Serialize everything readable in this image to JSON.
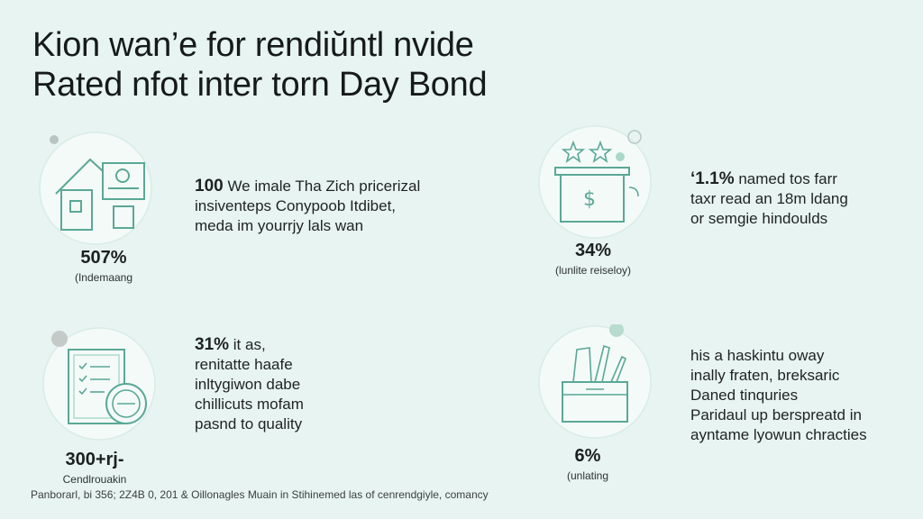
{
  "title": {
    "line1": "Kion wan’e for rendiŭntl nvide",
    "line2": "Rated nfot inter torn Day Bond"
  },
  "blocks": [
    {
      "stat_value": "507%",
      "stat_label": "(Indemaang",
      "lines": [
        "We imale Tha Zich pricerizal",
        "insiventeps Conypoob Itdibet,",
        "meda im yourrjy lals wan"
      ],
      "lead": "100",
      "icon": "house-document-icon"
    },
    {
      "stat_value": "34%",
      "stat_label": "(lunlite reiseloy)",
      "lines": [
        "named tos farr",
        "taxr read an 18m ldang",
        "or semgie hindoulds"
      ],
      "lead": "‘1.1%",
      "icon": "dollar-box-stars-icon"
    },
    {
      "stat_value": "300+rj-",
      "stat_label": "Cendlrouakin",
      "lines": [
        "it as,",
        "renitatte haafe",
        "inltygiwon dabe",
        "chillicuts mofam",
        "pasnd to quality"
      ],
      "lead": "31%",
      "icon": "checklist-card-icon"
    },
    {
      "stat_value": "6%",
      "stat_label": "(unlating",
      "lines": [
        "his a haskintu oway",
        "inally fraten, breksaric",
        "Daned tinquries",
        "Paridaul up berspreatd in",
        "ayntame lyowun chracties"
      ],
      "lead": "",
      "icon": "box-tools-icon"
    }
  ],
  "footer": "Panborarl, bi 356; 2Z4B 0, 201 & Oillonagles Muain in Stihinemed las of cenrendgiyle, comancy",
  "colors": {
    "accent": "#5aa896",
    "background": "#e7f4f1",
    "circle": "#f4faf8"
  }
}
